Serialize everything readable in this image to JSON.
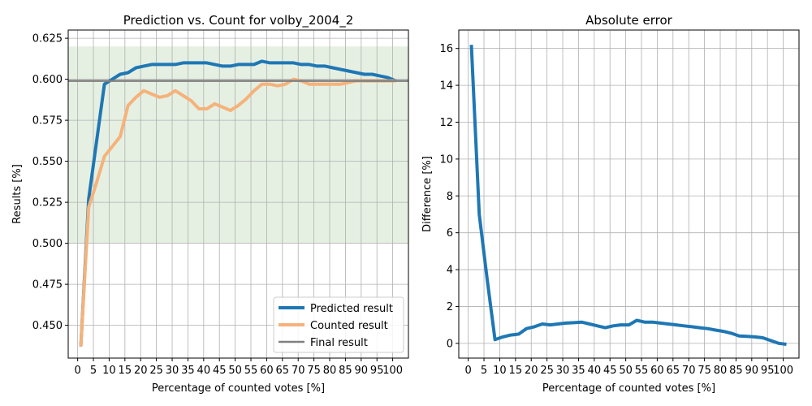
{
  "chart_data": [
    {
      "type": "line",
      "title": "Prediction vs. Count for volby_2004_2",
      "xlabel": "Percentage of counted votes [%]",
      "ylabel": "Results [%]",
      "xlim": [
        -3,
        105
      ],
      "ylim": [
        0.43,
        0.63
      ],
      "xticks": [
        0,
        5,
        10,
        15,
        20,
        25,
        30,
        35,
        40,
        45,
        50,
        55,
        60,
        65,
        70,
        75,
        80,
        85,
        90,
        95,
        100
      ],
      "yticks": [
        0.45,
        0.475,
        0.5,
        0.525,
        0.55,
        0.575,
        0.6,
        0.625
      ],
      "ytick_labels": [
        "0.450",
        "0.475",
        "0.500",
        "0.525",
        "0.550",
        "0.575",
        "0.600",
        "0.625"
      ],
      "grid": true,
      "band": {
        "y0": 0.5,
        "y1": 0.62,
        "color": "#e5f0e3"
      },
      "legend_position": "bottom-right",
      "series": [
        {
          "name": "Predicted result",
          "color": "#1f77b4",
          "width": 4,
          "x": [
            1,
            3.5,
            6,
            8.5,
            11,
            13.5,
            16,
            18.5,
            21,
            23.5,
            26,
            28.5,
            31,
            33.5,
            36,
            38.5,
            41,
            43.5,
            46,
            48.5,
            51,
            53.5,
            56,
            58.5,
            61,
            63.5,
            66,
            68.5,
            71,
            73.5,
            76,
            78.5,
            81,
            83.5,
            86,
            88.5,
            91,
            93.5,
            96,
            98.5,
            101
          ],
          "y": [
            0.437,
            0.527,
            0.562,
            0.597,
            0.6,
            0.603,
            0.604,
            0.607,
            0.608,
            0.609,
            0.609,
            0.609,
            0.609,
            0.61,
            0.61,
            0.61,
            0.61,
            0.609,
            0.608,
            0.608,
            0.609,
            0.609,
            0.609,
            0.611,
            0.61,
            0.61,
            0.61,
            0.61,
            0.609,
            0.609,
            0.608,
            0.608,
            0.607,
            0.606,
            0.605,
            0.604,
            0.603,
            0.603,
            0.602,
            0.601,
            0.599
          ]
        },
        {
          "name": "Counted result",
          "color": "#f5b27a",
          "width": 4,
          "x": [
            1,
            3.5,
            6,
            8.5,
            11,
            13.5,
            16,
            18.5,
            21,
            23.5,
            26,
            28.5,
            31,
            33.5,
            36,
            38.5,
            41,
            43.5,
            46,
            48.5,
            51,
            53.5,
            56,
            58.5,
            61,
            63.5,
            66,
            68.5,
            71,
            73.5,
            76,
            78.5,
            81,
            83.5,
            86,
            88.5,
            91,
            93.5,
            96,
            98.5,
            101
          ],
          "y": [
            0.437,
            0.522,
            0.537,
            0.553,
            0.559,
            0.565,
            0.584,
            0.589,
            0.593,
            0.591,
            0.589,
            0.59,
            0.593,
            0.59,
            0.587,
            0.582,
            0.582,
            0.585,
            0.583,
            0.581,
            0.584,
            0.588,
            0.593,
            0.597,
            0.597,
            0.596,
            0.597,
            0.6,
            0.599,
            0.597,
            0.597,
            0.597,
            0.597,
            0.597,
            0.598,
            0.599,
            0.599,
            0.599,
            0.599,
            0.599,
            0.599
          ]
        },
        {
          "name": "Final result",
          "color": "#808080",
          "width": 2.5,
          "x": [
            -3,
            105
          ],
          "y": [
            0.599,
            0.599
          ]
        }
      ]
    },
    {
      "type": "line",
      "title": "Absolute error",
      "xlabel": "Percentage of counted votes [%]",
      "ylabel": "Difference [%]",
      "xlim": [
        -3,
        105
      ],
      "ylim": [
        -0.8,
        17
      ],
      "xticks": [
        0,
        5,
        10,
        15,
        20,
        25,
        30,
        35,
        40,
        45,
        50,
        55,
        60,
        65,
        70,
        75,
        80,
        85,
        90,
        95,
        100
      ],
      "yticks": [
        0,
        2,
        4,
        6,
        8,
        10,
        12,
        14,
        16
      ],
      "ytick_labels": [
        "0",
        "2",
        "4",
        "6",
        "8",
        "10",
        "12",
        "14",
        "16"
      ],
      "grid": true,
      "series": [
        {
          "name": "",
          "color": "#1f77b4",
          "width": 4,
          "x": [
            1,
            3.5,
            6,
            8.5,
            11,
            13.5,
            16,
            18.5,
            21,
            23.5,
            26,
            28.5,
            31,
            33.5,
            36,
            38.5,
            41,
            43.5,
            46,
            48.5,
            51,
            53.5,
            56,
            58.5,
            61,
            63.5,
            66,
            68.5,
            71,
            73.5,
            76,
            78.5,
            81,
            83.5,
            86,
            88.5,
            91,
            93.5,
            96,
            98.5,
            101
          ],
          "y": [
            16.2,
            7.0,
            3.5,
            0.2,
            0.35,
            0.45,
            0.5,
            0.8,
            0.9,
            1.05,
            1.0,
            1.05,
            1.1,
            1.12,
            1.15,
            1.05,
            0.95,
            0.85,
            0.95,
            1.0,
            1.0,
            1.25,
            1.15,
            1.15,
            1.1,
            1.05,
            1.0,
            0.95,
            0.9,
            0.85,
            0.8,
            0.72,
            0.65,
            0.55,
            0.4,
            0.38,
            0.35,
            0.3,
            0.15,
            0.0,
            -0.05
          ]
        }
      ]
    }
  ]
}
